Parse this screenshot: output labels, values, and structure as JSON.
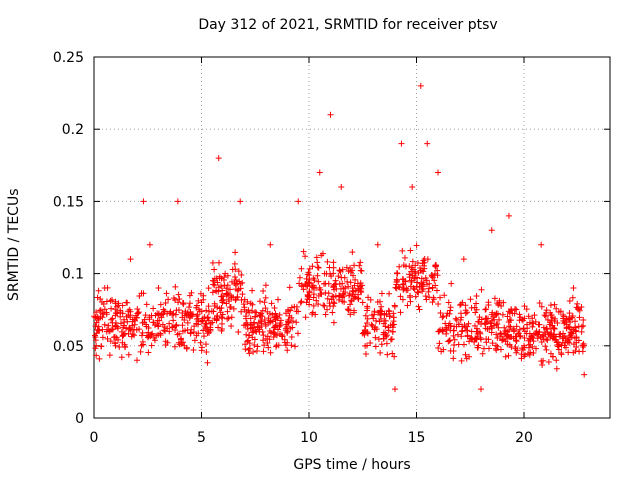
{
  "chart_data": {
    "type": "scatter",
    "title": "Day 312 of 2021, SRMTID for receiver ptsv",
    "xlabel": "GPS time / hours",
    "ylabel": "SRMTID / TECUs",
    "xlim": [
      0,
      24
    ],
    "ylim": [
      0,
      0.25
    ],
    "xticks": [
      "0",
      "5",
      "10",
      "15",
      "20"
    ],
    "yticks": [
      "0",
      "0.05",
      "0.1",
      "0.15",
      "0.2",
      "0.25"
    ],
    "grid": true,
    "marker": "plus",
    "color": "#ff0000",
    "sample_points": [
      {
        "x": 0.1,
        "y": 0.05
      },
      {
        "x": 0.3,
        "y": 0.07
      },
      {
        "x": 0.5,
        "y": 0.09
      },
      {
        "x": 0.7,
        "y": 0.06
      },
      {
        "x": 1.0,
        "y": 0.05
      },
      {
        "x": 1.5,
        "y": 0.08
      },
      {
        "x": 1.7,
        "y": 0.11
      },
      {
        "x": 2.0,
        "y": 0.04
      },
      {
        "x": 2.3,
        "y": 0.15
      },
      {
        "x": 2.6,
        "y": 0.12
      },
      {
        "x": 3.0,
        "y": 0.09
      },
      {
        "x": 3.5,
        "y": 0.06
      },
      {
        "x": 3.9,
        "y": 0.15
      },
      {
        "x": 4.2,
        "y": 0.05
      },
      {
        "x": 5.0,
        "y": 0.08
      },
      {
        "x": 5.8,
        "y": 0.18
      },
      {
        "x": 6.1,
        "y": 0.1
      },
      {
        "x": 6.8,
        "y": 0.15
      },
      {
        "x": 7.5,
        "y": 0.07
      },
      {
        "x": 8.2,
        "y": 0.12
      },
      {
        "x": 9.0,
        "y": 0.06
      },
      {
        "x": 9.5,
        "y": 0.15
      },
      {
        "x": 10.5,
        "y": 0.17
      },
      {
        "x": 11.0,
        "y": 0.21
      },
      {
        "x": 11.5,
        "y": 0.16
      },
      {
        "x": 12.5,
        "y": 0.08
      },
      {
        "x": 13.2,
        "y": 0.12
      },
      {
        "x": 14.0,
        "y": 0.02
      },
      {
        "x": 14.3,
        "y": 0.19
      },
      {
        "x": 14.8,
        "y": 0.16
      },
      {
        "x": 15.2,
        "y": 0.23
      },
      {
        "x": 15.5,
        "y": 0.19
      },
      {
        "x": 16.0,
        "y": 0.17
      },
      {
        "x": 16.5,
        "y": 0.08
      },
      {
        "x": 17.2,
        "y": 0.11
      },
      {
        "x": 18.0,
        "y": 0.02
      },
      {
        "x": 18.5,
        "y": 0.13
      },
      {
        "x": 19.3,
        "y": 0.14
      },
      {
        "x": 20.0,
        "y": 0.05
      },
      {
        "x": 20.8,
        "y": 0.12
      },
      {
        "x": 21.5,
        "y": 0.04
      },
      {
        "x": 22.3,
        "y": 0.09
      },
      {
        "x": 22.8,
        "y": 0.03
      }
    ]
  }
}
